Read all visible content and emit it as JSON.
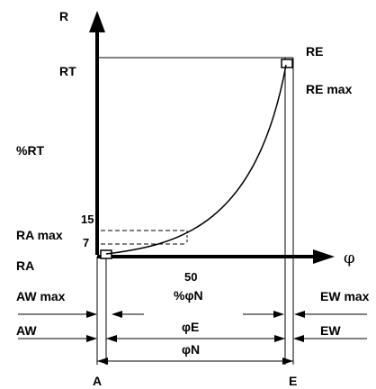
{
  "labels": {
    "R": "R",
    "RT": "RT",
    "pct_RT": "%RT",
    "val_15": "15",
    "RA_max": "RA max",
    "val_7": "7",
    "RA": "RA",
    "val_50": "50",
    "pct_phiN": "%φN",
    "AW_max": "AW max",
    "AW": "AW",
    "RE": "RE",
    "RE_max": "RE max",
    "phi": "φ",
    "EW_max": "EW max",
    "EW": "EW",
    "phiE": "φE",
    "phiN": "φN",
    "A": "A",
    "E": "E"
  },
  "colors": {
    "ink": "#000000",
    "paper": "#ffffff"
  }
}
